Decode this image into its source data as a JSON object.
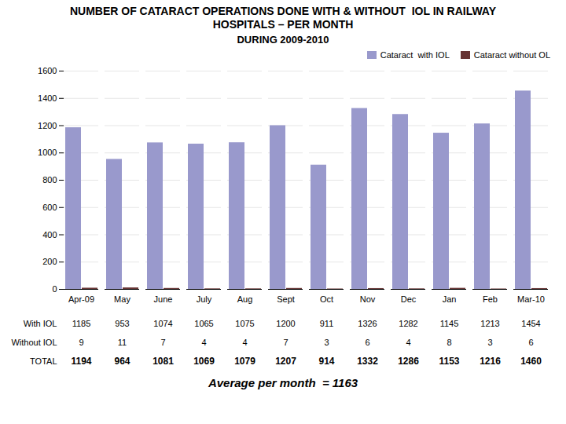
{
  "chart_data": {
    "type": "bar",
    "title": "NUMBER OF CATARACT OPERATIONS DONE WITH & WITHOUT  IOL IN RAILWAY\nHOSPITALS – PER MONTH",
    "subtitle": "DURING 2009-2010",
    "categories": [
      "Apr-09",
      "May",
      "June",
      "July",
      "Aug",
      "Sept",
      "Oct",
      "Nov",
      "Dec",
      "Jan",
      "Feb",
      "Mar-10"
    ],
    "series": [
      {
        "name": "Cataract  with IOL",
        "color": "#9999cc",
        "values": [
          1185,
          953,
          1074,
          1065,
          1075,
          1200,
          911,
          1326,
          1282,
          1145,
          1213,
          1454
        ]
      },
      {
        "name": "Cataract without OL",
        "color": "#663333",
        "values": [
          9,
          11,
          7,
          4,
          4,
          7,
          3,
          6,
          4,
          8,
          3,
          6
        ]
      }
    ],
    "table": {
      "rows": [
        {
          "label": "With IOL",
          "values": [
            1185,
            953,
            1074,
            1065,
            1075,
            1200,
            911,
            1326,
            1282,
            1145,
            1213,
            1454
          ]
        },
        {
          "label": "Without IOL",
          "values": [
            9,
            11,
            7,
            4,
            4,
            7,
            3,
            6,
            4,
            8,
            3,
            6
          ]
        },
        {
          "label": "TOTAL",
          "values": [
            1194,
            964,
            1081,
            1069,
            1079,
            1207,
            914,
            1332,
            1286,
            1153,
            1216,
            1460
          ]
        }
      ]
    },
    "annotations": [
      "Average per month  = 1163"
    ],
    "ylim": [
      0,
      1600
    ],
    "yticks": [
      0,
      200,
      400,
      600,
      800,
      1000,
      1200,
      1400,
      1600
    ],
    "grid": true,
    "legend": "upper right"
  }
}
